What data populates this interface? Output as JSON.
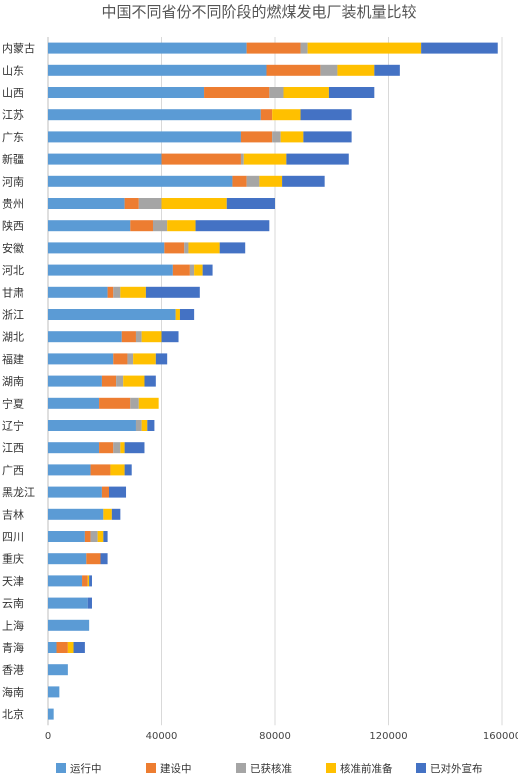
{
  "chart_data": {
    "type": "bar",
    "orientation": "horizontal",
    "stacked": true,
    "title": "中国不同省份不同阶段的燃煤发电厂装机量比较",
    "categories": [
      "内蒙古",
      "山东",
      "山西",
      "江苏",
      "广东",
      "新疆",
      "河南",
      "贵州",
      "陕西",
      "安徽",
      "河北",
      "甘肃",
      "浙江",
      "湖北",
      "福建",
      "湖南",
      "宁夏",
      "辽宁",
      "江西",
      "广西",
      "黑龙江",
      "吉林",
      "四川",
      "重庆",
      "天津",
      "云南",
      "上海",
      "青海",
      "香港",
      "海南",
      "北京"
    ],
    "series": [
      {
        "name": "运行中",
        "color": "#5b9bd5",
        "values": [
          70000,
          77000,
          55000,
          75000,
          68000,
          40000,
          65000,
          27000,
          29000,
          41000,
          44000,
          21000,
          45000,
          26000,
          23000,
          19000,
          18000,
          31000,
          18000,
          15000,
          19000,
          19500,
          13000,
          13500,
          12000,
          14000,
          14500,
          3000,
          7000,
          4000,
          2000
        ]
      },
      {
        "name": "建设中",
        "color": "#ed7d31",
        "values": [
          19000,
          19000,
          23000,
          4000,
          11000,
          28000,
          5000,
          5000,
          8000,
          7000,
          6000,
          2000,
          0,
          5000,
          5000,
          5000,
          11000,
          0,
          5000,
          7000,
          2500,
          0,
          2000,
          5000,
          2000,
          0,
          0,
          4000,
          0,
          0,
          0
        ]
      },
      {
        "name": "已获核准",
        "color": "#a5a5a5",
        "values": [
          2500,
          6000,
          5000,
          0,
          3000,
          1000,
          4500,
          8000,
          5000,
          1500,
          1500,
          2500,
          0,
          2000,
          2000,
          2500,
          3000,
          2000,
          2500,
          0,
          0,
          0,
          2500,
          0,
          0,
          0,
          0,
          0,
          0,
          0,
          0
        ]
      },
      {
        "name": "核准前准备",
        "color": "#ffc000",
        "values": [
          40000,
          13000,
          16000,
          10000,
          8000,
          15000,
          8000,
          23000,
          10000,
          11000,
          3000,
          9000,
          1500,
          7000,
          8000,
          7500,
          7000,
          2000,
          1500,
          5000,
          0,
          3000,
          2000,
          0,
          500,
          0,
          0,
          2000,
          0,
          0,
          0
        ]
      },
      {
        "name": "已对外宣布",
        "color": "#4472c4",
        "values": [
          27000,
          9000,
          16000,
          18000,
          17000,
          22000,
          15000,
          17000,
          26000,
          9000,
          3500,
          19000,
          5000,
          6000,
          4000,
          4000,
          0,
          2500,
          7000,
          2500,
          6000,
          3000,
          1500,
          2500,
          1000,
          1500,
          0,
          4000,
          0,
          0,
          0
        ]
      }
    ],
    "x_ticks": [
      "0",
      "40000",
      "80000",
      "120000",
      "160000"
    ],
    "xlim": [
      0,
      160000
    ],
    "grid": true,
    "legend": "bottom"
  }
}
